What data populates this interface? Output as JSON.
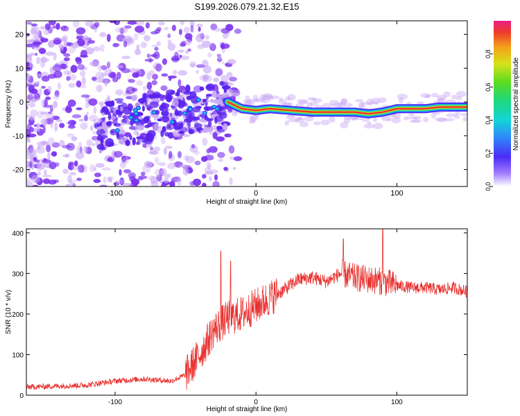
{
  "title": "S199.2026.079.21.32.E15",
  "colors": {
    "snr_line": "#e8302e",
    "track": "#e83030",
    "blob": "#7a2ff0",
    "blob_light": "#c9a8f5",
    "frame": "#000000"
  },
  "colorbar": {
    "label": "Normalized spectral amplitude",
    "ticks": [
      "0.0",
      "0.2",
      "0.4",
      "0.6",
      "0.8"
    ],
    "tick_values": [
      0.0,
      0.2,
      0.4,
      0.6,
      0.8
    ],
    "range": [
      0,
      1
    ]
  },
  "chart_data": [
    {
      "type": "heatmap",
      "title": "S199.2026.079.21.32.E15",
      "xlabel": "Height of straight line (km)",
      "ylabel": "Frequency (Hz)",
      "xlim": [
        -163,
        150
      ],
      "ylim": [
        -25,
        24
      ],
      "xticks": [
        -100,
        0,
        100
      ],
      "xtick_labels": [
        "-100",
        "0",
        "100"
      ],
      "yticks": [
        -20,
        -10,
        0,
        10,
        20
      ],
      "ytick_labels": [
        "-20",
        "-10",
        "0",
        "10",
        "20"
      ],
      "track": {
        "description": "strong narrow band after about -20 km",
        "x": [
          -20,
          -10,
          0,
          10,
          25,
          40,
          55,
          70,
          80,
          90,
          100,
          110,
          120,
          130,
          140,
          150
        ],
        "y": [
          0,
          -2,
          -2.5,
          -2,
          -2.5,
          -3,
          -3,
          -3,
          -3.5,
          -3,
          -2,
          -2,
          -2,
          -1.5,
          -1.5,
          -1.5
        ]
      }
    },
    {
      "type": "line",
      "title": "",
      "xlabel": "Height of straight line (km)",
      "ylabel": "SNR (10 * v/v)",
      "xlim": [
        -163,
        150
      ],
      "ylim": [
        0,
        410
      ],
      "xticks": [
        -100,
        0,
        100
      ],
      "xtick_labels": [
        "-100",
        "0",
        "100"
      ],
      "yticks": [
        0,
        100,
        200,
        300,
        400
      ],
      "ytick_labels": [
        "0",
        "100",
        "200",
        "300",
        "400"
      ],
      "series": [
        {
          "name": "SNR",
          "x": [
            -163,
            -120,
            -100,
            -80,
            -60,
            -50,
            -40,
            -30,
            -20,
            -10,
            0,
            10,
            20,
            30,
            40,
            50,
            60,
            70,
            80,
            90,
            100,
            110,
            120,
            130,
            140,
            150
          ],
          "values": [
            20,
            25,
            35,
            40,
            35,
            50,
            100,
            160,
            190,
            200,
            220,
            240,
            260,
            285,
            290,
            280,
            300,
            290,
            285,
            280,
            270,
            265,
            265,
            260,
            265,
            255
          ],
          "peaks": [
            {
              "x": -25,
              "y": 355
            },
            {
              "x": -18,
              "y": 330
            },
            {
              "x": 62,
              "y": 385
            },
            {
              "x": 90,
              "y": 420
            }
          ]
        }
      ]
    }
  ]
}
